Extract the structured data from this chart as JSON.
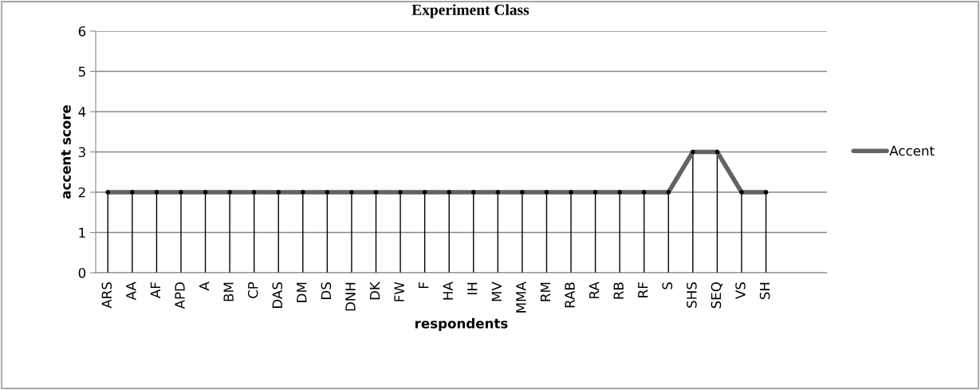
{
  "chart_data": {
    "type": "line",
    "title": "Experiment Class",
    "xlabel": "respondents",
    "ylabel": "accent score",
    "categories": [
      "ARS",
      "AA",
      "AF",
      "APD",
      "A",
      "BM",
      "CP",
      "DAS",
      "DM",
      "DS",
      "DNH",
      "DK",
      "FW",
      "F",
      "HA",
      "IH",
      "MV",
      "MMA",
      "RM",
      "RAB",
      "RA",
      "RB",
      "RF",
      "S",
      "SHS",
      "SEQ",
      "VS",
      "SH",
      null,
      null
    ],
    "series": [
      {
        "type": "lollipop",
        "color": "#000000",
        "marker": "circle",
        "values": [
          2,
          2,
          2,
          2,
          2,
          2,
          2,
          2,
          2,
          2,
          2,
          2,
          2,
          2,
          2,
          2,
          2,
          2,
          2,
          2,
          2,
          2,
          2,
          2,
          3,
          3,
          2,
          2,
          null,
          null
        ]
      },
      {
        "name": "Accent",
        "color": "#636363",
        "values": [
          2,
          2,
          2,
          2,
          2,
          2,
          2,
          2,
          2,
          2,
          2,
          2,
          2,
          2,
          2,
          2,
          2,
          2,
          2,
          2,
          2,
          2,
          2,
          2,
          3,
          3,
          2,
          2,
          null,
          null
        ]
      }
    ],
    "ylim": [
      0,
      6
    ],
    "yticks": [
      0,
      1,
      2,
      3,
      4,
      5,
      6
    ],
    "grid": "y",
    "legend": "right",
    "marker": "none",
    "line_style": "solid"
  }
}
